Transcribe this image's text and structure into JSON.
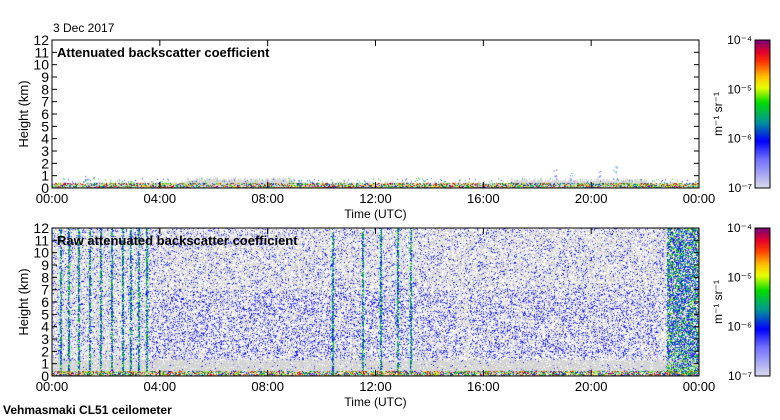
{
  "date_label": "3 Dec 2017",
  "footer_label": "Vehmasmaki CL51 ceilometer",
  "colors": {
    "ground_gray": "#d8d8d8",
    "axis": "#000000"
  },
  "chart_data": [
    {
      "type": "heatmap",
      "title": "Attenuated backscatter coefficient",
      "xlabel": "Time (UTC)",
      "ylabel": "Height (km)",
      "x_ticks": [
        "00:00",
        "04:00",
        "08:00",
        "12:00",
        "16:00",
        "20:00",
        "00:00"
      ],
      "y_ticks": [
        "0",
        "1",
        "2",
        "3",
        "4",
        "5",
        "6",
        "7",
        "8",
        "9",
        "10",
        "11",
        "12"
      ],
      "xlim_hours": [
        0,
        24
      ],
      "ylim_km": [
        0,
        12
      ],
      "colorbar": {
        "unit": "m⁻¹ sr⁻¹",
        "labels": [
          "10⁻⁴",
          "10⁻⁵",
          "10⁻⁶",
          "10⁻⁷"
        ],
        "range": [
          1e-07,
          0.0001
        ],
        "scale": "log"
      },
      "features": "signal confined below ~1 km; isolated returns near 1-2 km around 18:30-21:00"
    },
    {
      "type": "heatmap",
      "title": "Raw attenuated backscatter coefficient",
      "xlabel": "Time (UTC)",
      "ylabel": "Height (km)",
      "x_ticks": [
        "00:00",
        "04:00",
        "08:00",
        "12:00",
        "16:00",
        "20:00",
        "00:00"
      ],
      "y_ticks": [
        "0",
        "1",
        "2",
        "3",
        "4",
        "5",
        "6",
        "7",
        "8",
        "9",
        "10",
        "11",
        "12"
      ],
      "xlim_hours": [
        0,
        24
      ],
      "ylim_km": [
        0,
        12
      ],
      "colorbar": {
        "unit": "m⁻¹ sr⁻¹",
        "labels": [
          "10⁻⁴",
          "10⁻⁵",
          "10⁻⁶",
          "10⁻⁷"
        ],
        "range": [
          1e-07,
          0.0001
        ],
        "scale": "log"
      },
      "features": "noise throughout column; vertical streaks 00:00-03:30 and near 10:00-13:30; strong noise after 23:00"
    }
  ]
}
